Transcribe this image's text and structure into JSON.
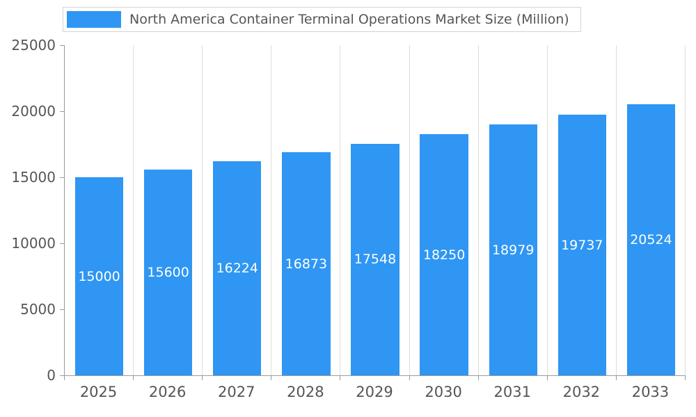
{
  "chart_data": {
    "type": "bar",
    "title": "North America Container Terminal Operations Market Size (Million)",
    "categories": [
      "2025",
      "2026",
      "2027",
      "2028",
      "2029",
      "2030",
      "2031",
      "2032",
      "2033"
    ],
    "values": [
      15000,
      15600,
      16224,
      16873,
      17548,
      18250,
      18979,
      19737,
      20524
    ],
    "series": [
      {
        "name": "North America Container Terminal Operations Market Size (Million)",
        "values": [
          15000,
          15600,
          16224,
          16873,
          17548,
          18250,
          18979,
          19737,
          20524
        ]
      }
    ],
    "xlabel": "",
    "ylabel": "",
    "ylim": [
      0,
      25000
    ],
    "yticks": [
      0,
      5000,
      10000,
      15000,
      20000,
      25000
    ],
    "legend_position": "top",
    "grid": "vertical-only",
    "bar_color": "#2F96F3",
    "value_label_color": "#FFFFFF",
    "axis_text_color": "#555555",
    "grid_color": "#DDDDDD",
    "axis_line_color": "#999999"
  }
}
